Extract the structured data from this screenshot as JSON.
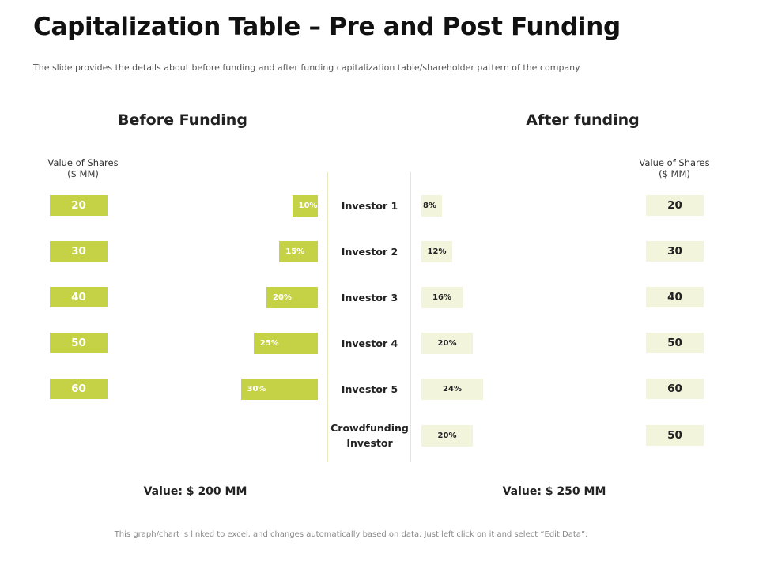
{
  "header": {
    "title": "Capitalization Table – Pre and Post Funding",
    "subtitle": "The slide provides the details about before funding  and after funding  capitalization table/shareholder pattern of the company"
  },
  "chart_data": {
    "type": "bar",
    "title": "Capitalization Table – Pre and Post Funding",
    "categories": [
      "Investor 1",
      "Investor 2",
      "Investor 3",
      "Investor 4",
      "Investor 5",
      "Crowdfunding Investor"
    ],
    "before": {
      "heading": "Before Funding",
      "value_col_label": "Value of Shares\n($ MM)",
      "values": [
        20,
        30,
        40,
        50,
        60
      ],
      "percent_labels": [
        "10%",
        "15%",
        "20%",
        "25%",
        "30%"
      ],
      "percents": [
        10,
        15,
        20,
        25,
        30
      ],
      "total_label": "Value: $ 200 MM"
    },
    "after": {
      "heading": "After funding",
      "value_col_label": "Value of Shares\n($ MM)",
      "values": [
        20,
        30,
        40,
        50,
        60,
        50
      ],
      "percent_labels": [
        "8%",
        "12%",
        "16%",
        "20%",
        "24%",
        "20%"
      ],
      "percents": [
        8,
        12,
        16,
        20,
        24,
        20
      ],
      "total_label": "Value: $ 250 MM"
    },
    "colors": {
      "before": "#c6d246",
      "after": "#f2f4dc"
    }
  },
  "footer": {
    "note": "This graph/chart is linked to excel, and changes automatically based on data. Just left click on it and select “Edit Data”."
  }
}
